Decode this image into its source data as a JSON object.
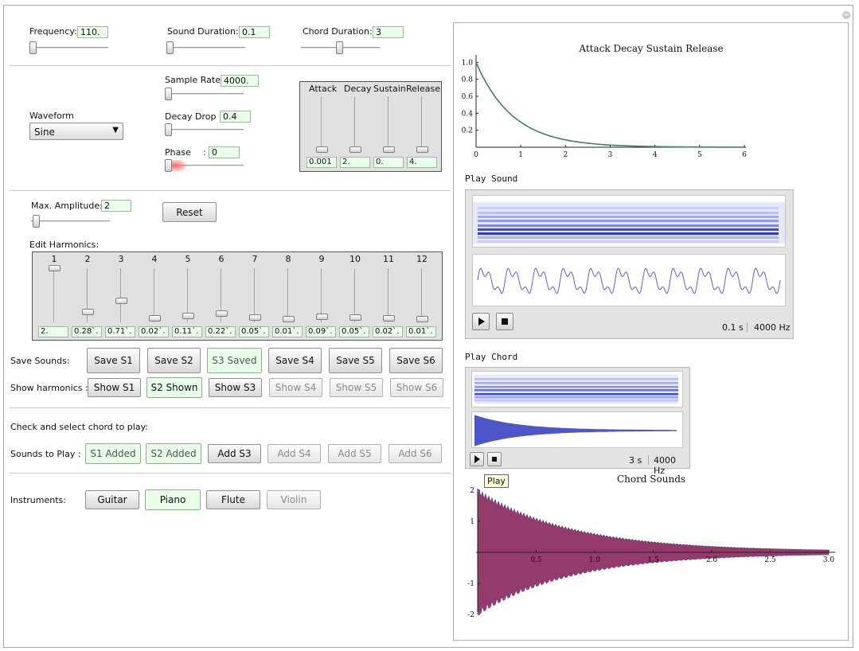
{
  "controls": {
    "frequency_label": "Frequency:",
    "frequency_value": "110.",
    "sound_duration_label": "Sound Duration:",
    "sound_duration_value": "0.1",
    "chord_duration_label": "Chord Duration:",
    "chord_duration_value": "3",
    "waveform_label": "Waveform",
    "waveform_value": "Sine",
    "sample_rate_label": "Sample Rate:",
    "sample_rate_value": "4000.",
    "decay_drop_label": "Decay Drop :",
    "decay_drop_value": "0.4",
    "phase_label": "Phase",
    "phase_colon": ":",
    "phase_value": "0",
    "max_amplitude_label": "Max. Amplitude:",
    "max_amplitude_value": "2",
    "reset_label": "Reset"
  },
  "adsr": {
    "headers": [
      "Attack",
      "Decay",
      "Sustain",
      "Release"
    ],
    "values": [
      "0.001",
      "2.",
      "0.",
      "4."
    ]
  },
  "harmonics": {
    "label": "Edit Harmonics:",
    "numbers": [
      "1",
      "2",
      "3",
      "4",
      "5",
      "6",
      "7",
      "8",
      "9",
      "10",
      "11",
      "12"
    ],
    "values": [
      "2.",
      "0.28`.",
      "0.71`.",
      "0.02`.",
      "0.11`.",
      "0.22`.",
      "0.05`.",
      "0.01`.",
      "0.09`.",
      "0.05`.",
      "0.02`.",
      "0.01`."
    ],
    "levels": [
      1.0,
      0.14,
      0.355,
      0.01,
      0.055,
      0.11,
      0.025,
      0.005,
      0.045,
      0.025,
      0.01,
      0.005
    ]
  },
  "save_sounds": {
    "label": "Save Sounds:",
    "buttons": [
      "Save S1",
      "Save S2",
      "S3 Saved",
      "Save S4",
      "Save S5",
      "Save S6"
    ]
  },
  "show_harmonics": {
    "label": "Show harmonics :",
    "buttons": [
      "Show S1",
      "S2 Shown",
      "Show S3",
      "Show S4",
      "Show S5",
      "Show S6"
    ]
  },
  "chord": {
    "instruction": "Check and select chord to play:",
    "label": "Sounds to Play :",
    "buttons": [
      "S1 Added",
      "S2 Added",
      "Add S3",
      "Add S4",
      "Add S5",
      "Add S6"
    ]
  },
  "instruments": {
    "label": "Instruments:",
    "buttons": [
      "Guitar",
      "Piano",
      "Flute",
      "Violin"
    ]
  },
  "play_sound": {
    "title": "Play Sound",
    "duration": "0.1 s",
    "rate": "4000 Hz"
  },
  "play_chord": {
    "title": "Play Chord",
    "duration": "3 s",
    "rate": "4000 Hz",
    "tooltip": "Play"
  },
  "chart_data": [
    {
      "type": "line",
      "title": "Attack Decay Sustain Release",
      "x_ticks": [
        "0",
        "1",
        "2",
        "3",
        "4",
        "5",
        "6"
      ],
      "y_ticks": [
        "0.2",
        "0.4",
        "0.6",
        "0.8",
        "1.0"
      ],
      "xlim": [
        0,
        6
      ],
      "ylim": [
        0,
        1.05
      ],
      "series": [
        {
          "x": [
            0,
            0.5,
            1,
            1.5,
            2,
            2.5,
            3,
            4,
            5,
            6
          ],
          "y": [
            1.0,
            0.55,
            0.3,
            0.17,
            0.09,
            0.05,
            0.03,
            0.01,
            0.005,
            0.0
          ]
        }
      ],
      "color": "#3f7d6a"
    },
    {
      "type": "area",
      "title": "Chord Sounds",
      "x_ticks": [
        "0.5",
        "1.0",
        "1.5",
        "2.0",
        "2.5",
        "3.0"
      ],
      "y_ticks": [
        "2",
        "1",
        "-1",
        "-2"
      ],
      "xlim": [
        0,
        3
      ],
      "ylim": [
        -2,
        2
      ],
      "envelope": {
        "x": [
          0,
          0.25,
          0.5,
          0.75,
          1.0,
          1.5,
          2.0,
          2.5,
          3.0
        ],
        "y": [
          1.9,
          1.4,
          1.0,
          0.72,
          0.52,
          0.27,
          0.14,
          0.07,
          0.04
        ]
      },
      "color": "#8b2a5e"
    }
  ],
  "colors": {
    "field_bg": "#eaffea",
    "active_button": "#e7fde7",
    "waveform_blue": "#5a63c9",
    "chord_fill": "#8b2a5e"
  }
}
